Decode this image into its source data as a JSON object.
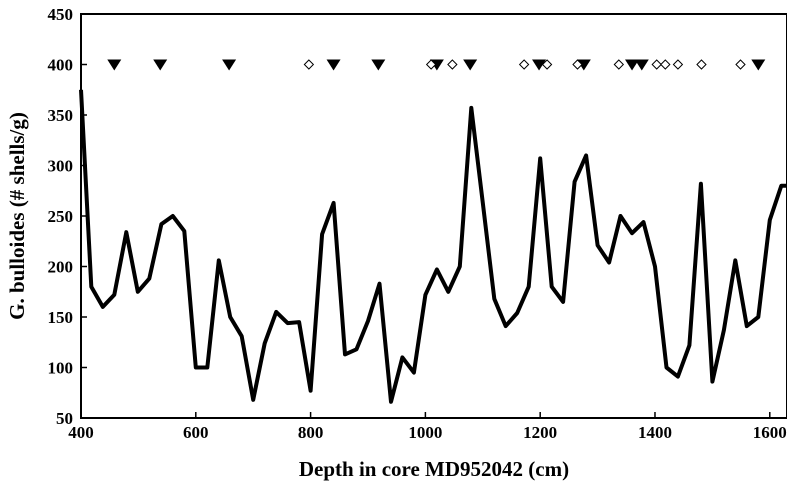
{
  "chart_data": {
    "type": "line",
    "title": "",
    "xlabel": "Depth in core MD952042 (cm)",
    "ylabel": "G. bulloides (# shells/g)",
    "xlim": [
      400,
      1630
    ],
    "ylim": [
      50,
      450
    ],
    "xticks": [
      400,
      600,
      800,
      1000,
      1200,
      1400,
      1600
    ],
    "yticks": [
      50,
      100,
      150,
      200,
      250,
      300,
      350,
      400,
      450
    ],
    "grid": false,
    "legend": "none",
    "series": [
      {
        "color": "#000000",
        "x": [
          400,
          418,
          438,
          458,
          479,
          499,
          519,
          540,
          560,
          580,
          600,
          620,
          640,
          660,
          680,
          700,
          720,
          740,
          760,
          780,
          800,
          820,
          840,
          860,
          880,
          900,
          920,
          940,
          960,
          980,
          1000,
          1020,
          1040,
          1060,
          1080,
          1100,
          1120,
          1140,
          1160,
          1180,
          1200,
          1220,
          1240,
          1260,
          1280,
          1300,
          1320,
          1340,
          1360,
          1380,
          1400,
          1420,
          1440,
          1460,
          1480,
          1500,
          1520,
          1540,
          1560,
          1580,
          1600,
          1620,
          1630
        ],
        "y": [
          375,
          180,
          160,
          172,
          234,
          175,
          188,
          242,
          250,
          235,
          100,
          100,
          206,
          150,
          131,
          68,
          124,
          155,
          144,
          145,
          77,
          232,
          263,
          113,
          118,
          146,
          183,
          66,
          110,
          95,
          172,
          197,
          175,
          200,
          357,
          263,
          168,
          141,
          154,
          180,
          307,
          180,
          165,
          284,
          310,
          221,
          204,
          250,
          233,
          244,
          200,
          100,
          91,
          122,
          282,
          86,
          137,
          206,
          141,
          150,
          246,
          280,
          280
        ]
      }
    ],
    "markers": {
      "y": 400,
      "filled_triangles_x": [
        458,
        538,
        658,
        840,
        918,
        1020,
        1078,
        1198,
        1276,
        1360,
        1377,
        1580
      ],
      "open_diamonds_x": [
        797,
        1010,
        1047,
        1172,
        1212,
        1265,
        1337,
        1403,
        1418,
        1440,
        1481,
        1549
      ]
    }
  }
}
